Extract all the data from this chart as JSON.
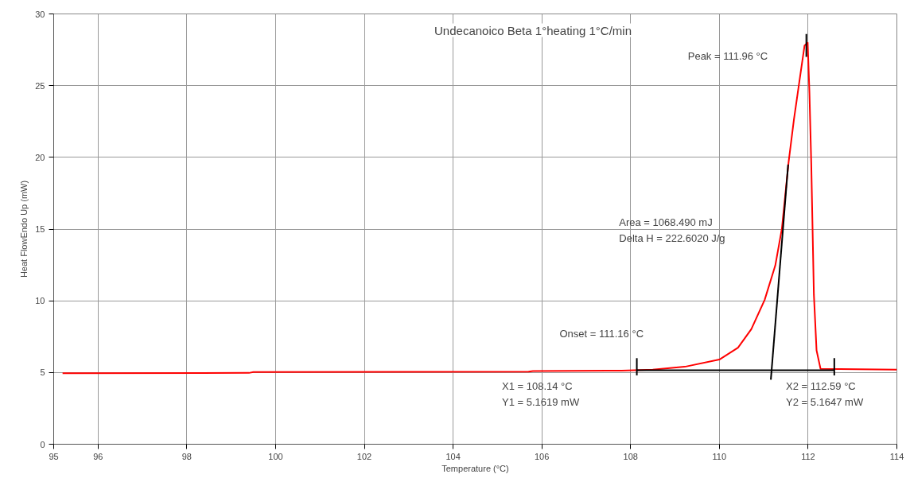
{
  "chart_data": {
    "type": "line",
    "title": "Undecanoico Beta 1°heating 1°C/min",
    "xlabel": "Temperature (°C)",
    "ylabel": "Heat FlowEndo Up (mW)",
    "xlim": [
      95,
      114
    ],
    "xticks": [
      95,
      96,
      98,
      100,
      102,
      104,
      106,
      108,
      110,
      112,
      114
    ],
    "ylim": [
      0,
      30
    ],
    "yticks": [
      0,
      5,
      10,
      15,
      20,
      25,
      30
    ],
    "grid": true,
    "line_style": "solid",
    "marker": "none",
    "series": [
      {
        "color": "#ff0000",
        "x": [
          95.2,
          99.4,
          99.5,
          105.7,
          105.8,
          107.8,
          108.5,
          109.22,
          110.0,
          110.42,
          110.72,
          111.02,
          111.26,
          111.41,
          111.56,
          111.68,
          111.8,
          111.92,
          111.99,
          112.03,
          112.07,
          112.13,
          112.19,
          112.28,
          114
        ],
        "values": [
          4.95,
          4.97,
          5.03,
          5.06,
          5.1,
          5.13,
          5.2,
          5.4,
          5.9,
          6.73,
          8.02,
          10.06,
          12.46,
          15.05,
          19.67,
          22.63,
          25.22,
          27.8,
          27.99,
          24.48,
          19.67,
          10.43,
          6.54,
          5.25,
          5.2
        ]
      },
      {
        "color": "#000000",
        "x": [
          108.14,
          112.59
        ],
        "values": [
          5.16,
          5.16
        ]
      },
      {
        "color": "#000000",
        "x": [
          111.16,
          111.55
        ],
        "values": [
          4.5,
          19.5
        ]
      },
      {
        "color": "#000000",
        "x": [
          108.14,
          108.14
        ],
        "values": [
          4.8,
          6.0
        ]
      },
      {
        "color": "#000000",
        "x": [
          112.59,
          112.59
        ],
        "values": [
          4.8,
          6.0
        ]
      },
      {
        "color": "#000000",
        "x": [
          111.96,
          111.96
        ],
        "values": [
          27.0,
          28.6
        ]
      }
    ],
    "annotations": [
      "Peak = 111.96 °C",
      "Onset = 111.16 °C",
      "X1 = 108.14 °C\nY1 = 5.1619 mW",
      "X2 = 112.59 °C\nY2 = 5.1647 mW",
      "Area = 1068.490 mJ\nDelta H = 222.6020 J/g"
    ]
  }
}
